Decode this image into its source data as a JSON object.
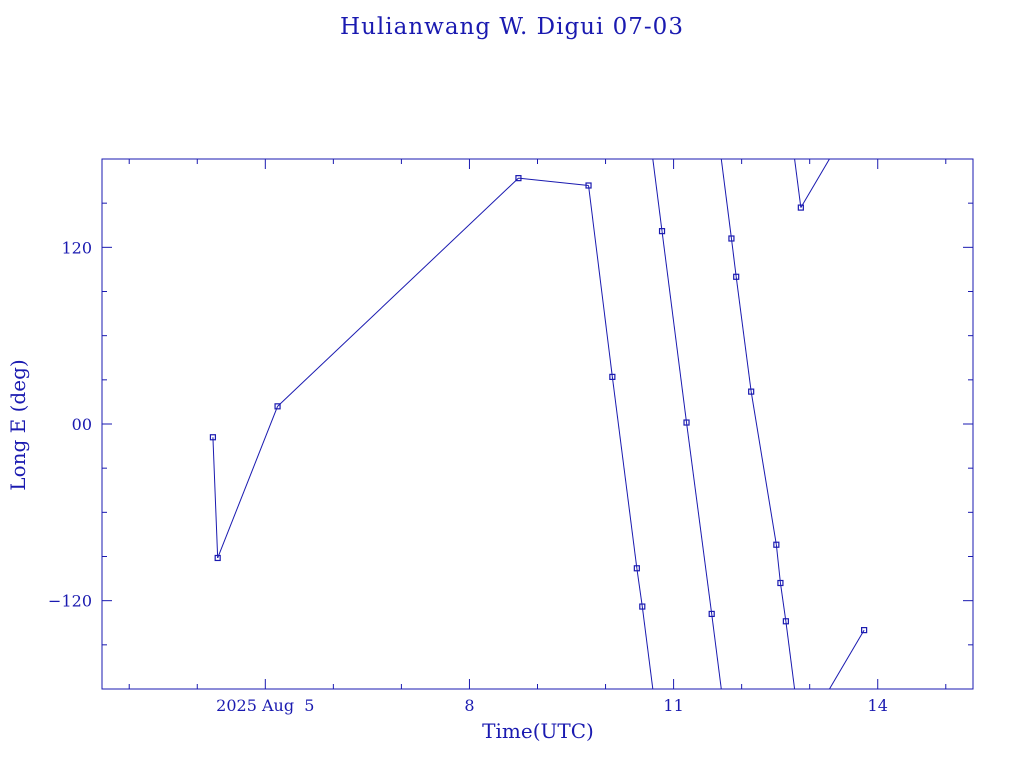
{
  "chart_data": {
    "type": "line",
    "title": "Hulianwang W. Digui 07-03",
    "xlabel": "Time(UTC)",
    "ylabel": "Long E (deg)",
    "x_unit": "days",
    "xlim": [
      2.6,
      15.4
    ],
    "ylim": [
      -180,
      180
    ],
    "x_ticks": [
      {
        "value": 5,
        "label": "2025 Aug  5"
      },
      {
        "value": 8,
        "label": "8"
      },
      {
        "value": 11,
        "label": "11"
      },
      {
        "value": 14,
        "label": "14"
      }
    ],
    "y_ticks": [
      {
        "value": 120,
        "label": "120"
      },
      {
        "value": 0,
        "label": "00"
      },
      {
        "value": -120,
        "label": "−120"
      }
    ],
    "longitude_wrap": true,
    "series": [
      {
        "points": [
          {
            "x": 4.23,
            "y": -9
          },
          {
            "x": 4.3,
            "y": -91
          },
          {
            "x": 5.18,
            "y": 12
          },
          {
            "x": 8.72,
            "y": 167
          },
          {
            "x": 9.75,
            "y": 162
          },
          {
            "x": 10.1,
            "y": 32
          },
          {
            "x": 10.46,
            "y": -98
          },
          {
            "x": 10.54,
            "y": -124
          },
          {
            "x": 10.83,
            "y": 131
          },
          {
            "x": 11.19,
            "y": 1
          },
          {
            "x": 11.56,
            "y": -129
          },
          {
            "x": 11.85,
            "y": 126
          },
          {
            "x": 11.92,
            "y": 100
          },
          {
            "x": 12.14,
            "y": 22
          },
          {
            "x": 12.51,
            "y": -82
          },
          {
            "x": 12.57,
            "y": -108
          },
          {
            "x": 12.65,
            "y": -134
          },
          {
            "x": 12.87,
            "y": 147
          },
          {
            "x": 13.8,
            "y": -140
          }
        ]
      }
    ]
  }
}
